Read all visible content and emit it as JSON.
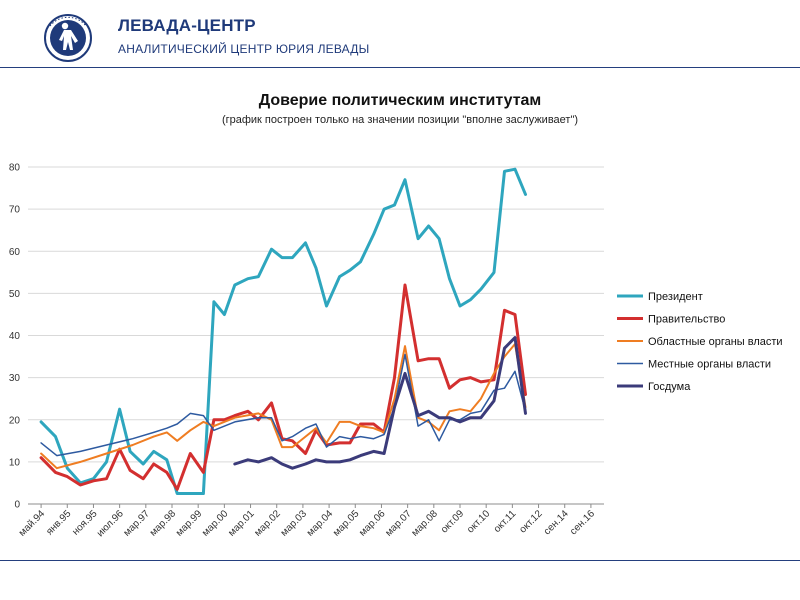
{
  "header": {
    "brand_name": "ЛЕВАДА-ЦЕНТР",
    "brand_sub": "АНАЛИТИЧЕСКИЙ ЦЕНТР ЮРИЯ ЛЕВАДЫ",
    "logo_icon": "levada-logo-icon"
  },
  "chart_data": {
    "type": "line",
    "title": "Доверие политическим институтам",
    "subtitle": "(график построен только на значении позиции \"вполне заслуживает\")",
    "xlabel": "",
    "ylabel": "",
    "ylim": [
      0,
      85
    ],
    "yticks": [
      0,
      10,
      20,
      30,
      40,
      50,
      60,
      70,
      80
    ],
    "grid": true,
    "legend": "right",
    "categories": [
      "май.94",
      "янв.95",
      "ноя.95",
      "июл.96",
      "мар.97",
      "мар.98",
      "мар.99",
      "мар.00",
      "мар.01",
      "мар.02",
      "мар.03",
      "мар.04",
      "мар.05",
      "мар.06",
      "мар.07",
      "мар.08",
      "окт.09",
      "окт.10",
      "окт.11",
      "окт.12",
      "сен.14",
      "сен.16"
    ],
    "series": [
      {
        "name": "Президент",
        "color": "#2ea6be",
        "width": 3,
        "values": [
          [
            0,
            19.5
          ],
          [
            0.55,
            16
          ],
          [
            1,
            8.5
          ],
          [
            1.5,
            5
          ],
          [
            2,
            6
          ],
          [
            2.5,
            10
          ],
          [
            3,
            22.5
          ],
          [
            3.4,
            12.5
          ],
          [
            3.9,
            9.5
          ],
          [
            4.3,
            12.5
          ],
          [
            4.8,
            10.5
          ],
          [
            5.2,
            2.5
          ],
          [
            5.7,
            2.5
          ],
          [
            6.2,
            2.5
          ],
          [
            6.6,
            48
          ],
          [
            7,
            45
          ],
          [
            7.4,
            52
          ],
          [
            7.9,
            53.5
          ],
          [
            8.3,
            54
          ],
          [
            8.8,
            60.5
          ],
          [
            9.2,
            58.5
          ],
          [
            9.6,
            58.5
          ],
          [
            10.1,
            62
          ],
          [
            10.5,
            56
          ],
          [
            10.9,
            47
          ],
          [
            11.4,
            54
          ],
          [
            11.8,
            55.5
          ],
          [
            12.2,
            57.5
          ],
          [
            12.7,
            64
          ],
          [
            13.1,
            70
          ],
          [
            13.5,
            71
          ],
          [
            13.9,
            77
          ],
          [
            14.4,
            63
          ],
          [
            14.8,
            66
          ],
          [
            15.2,
            63
          ],
          [
            15.6,
            53.5
          ],
          [
            16,
            47
          ],
          [
            16.4,
            48.5
          ],
          [
            16.8,
            51
          ],
          [
            17.3,
            55
          ],
          [
            17.7,
            79
          ],
          [
            18.1,
            79.5
          ],
          [
            18.5,
            73.5
          ]
        ]
      },
      {
        "name": "Правительство",
        "color": "#d32f2f",
        "width": 3,
        "values": [
          [
            0,
            11
          ],
          [
            0.55,
            7.5
          ],
          [
            1,
            6.5
          ],
          [
            1.5,
            4.5
          ],
          [
            2,
            5.5
          ],
          [
            2.5,
            6
          ],
          [
            3,
            13
          ],
          [
            3.4,
            8
          ],
          [
            3.9,
            6
          ],
          [
            4.3,
            9.5
          ],
          [
            4.8,
            7.5
          ],
          [
            5.2,
            3.5
          ],
          [
            5.7,
            12
          ],
          [
            6.2,
            7.5
          ],
          [
            6.6,
            20
          ],
          [
            7,
            20
          ],
          [
            7.4,
            21
          ],
          [
            7.9,
            22
          ],
          [
            8.3,
            20
          ],
          [
            8.8,
            24
          ],
          [
            9.2,
            15.5
          ],
          [
            9.6,
            15
          ],
          [
            10.1,
            12
          ],
          [
            10.5,
            17.5
          ],
          [
            10.9,
            14
          ],
          [
            11.4,
            14.5
          ],
          [
            11.8,
            14.5
          ],
          [
            12.2,
            19
          ],
          [
            12.7,
            19
          ],
          [
            13.1,
            17
          ],
          [
            13.5,
            30
          ],
          [
            13.9,
            52
          ],
          [
            14.4,
            34
          ],
          [
            14.8,
            34.5
          ],
          [
            15.2,
            34.5
          ],
          [
            15.6,
            27.5
          ],
          [
            16,
            29.5
          ],
          [
            16.4,
            30
          ],
          [
            16.8,
            29
          ],
          [
            17.3,
            29.5
          ],
          [
            17.7,
            46
          ],
          [
            18.1,
            45
          ],
          [
            18.5,
            26
          ]
        ]
      },
      {
        "name": "Областные органы власти",
        "color": "#ef7d22",
        "width": 2,
        "values": [
          [
            0,
            12
          ],
          [
            0.6,
            8.5
          ],
          [
            1.5,
            10
          ],
          [
            2.5,
            12
          ],
          [
            3.5,
            14
          ],
          [
            4.3,
            16
          ],
          [
            4.8,
            17
          ],
          [
            5.2,
            15
          ],
          [
            5.7,
            17.5
          ],
          [
            6.2,
            19.5
          ],
          [
            6.6,
            18.5
          ],
          [
            7.4,
            20.5
          ],
          [
            8.3,
            21.5
          ],
          [
            8.8,
            20
          ],
          [
            9.2,
            13.5
          ],
          [
            9.6,
            13.5
          ],
          [
            10.1,
            16
          ],
          [
            10.5,
            18
          ],
          [
            10.9,
            14.5
          ],
          [
            11.4,
            19.5
          ],
          [
            11.8,
            19.5
          ],
          [
            12.2,
            18.5
          ],
          [
            12.7,
            18
          ],
          [
            13.1,
            17
          ],
          [
            13.5,
            25
          ],
          [
            13.9,
            37.5
          ],
          [
            14.4,
            20.5
          ],
          [
            14.8,
            19.5
          ],
          [
            15.2,
            17.5
          ],
          [
            15.6,
            22
          ],
          [
            16,
            22.5
          ],
          [
            16.4,
            22
          ],
          [
            16.8,
            25
          ],
          [
            17.3,
            31
          ],
          [
            17.7,
            35
          ],
          [
            18.1,
            38
          ],
          [
            18.5,
            23
          ]
        ]
      },
      {
        "name": "Местные органы власти",
        "color": "#2e5aa0",
        "width": 1.5,
        "values": [
          [
            0,
            14.5
          ],
          [
            0.6,
            11.5
          ],
          [
            1.5,
            12.5
          ],
          [
            2.5,
            14
          ],
          [
            3.5,
            15.5
          ],
          [
            4.3,
            17
          ],
          [
            4.8,
            18
          ],
          [
            5.2,
            19
          ],
          [
            5.7,
            21.5
          ],
          [
            6.2,
            21
          ],
          [
            6.6,
            17.5
          ],
          [
            7.4,
            19.5
          ],
          [
            8.3,
            20.5
          ],
          [
            8.8,
            20.5
          ],
          [
            9.2,
            15
          ],
          [
            9.6,
            16
          ],
          [
            10.1,
            18
          ],
          [
            10.5,
            19
          ],
          [
            10.9,
            13.5
          ],
          [
            11.4,
            16
          ],
          [
            11.8,
            15.5
          ],
          [
            12.2,
            16
          ],
          [
            12.7,
            15.5
          ],
          [
            13.1,
            16.5
          ],
          [
            13.5,
            23
          ],
          [
            13.9,
            35.5
          ],
          [
            14.4,
            18.5
          ],
          [
            14.8,
            20
          ],
          [
            15.2,
            15
          ],
          [
            15.6,
            20
          ],
          [
            16,
            20
          ],
          [
            16.4,
            21.5
          ],
          [
            16.8,
            22
          ],
          [
            17.3,
            27
          ],
          [
            17.7,
            27.5
          ],
          [
            18.1,
            31.5
          ],
          [
            18.5,
            22
          ]
        ]
      },
      {
        "name": "Госдума",
        "color": "#3b3b7a",
        "width": 3,
        "values": [
          [
            7.4,
            9.5
          ],
          [
            7.9,
            10.5
          ],
          [
            8.3,
            10
          ],
          [
            8.8,
            11
          ],
          [
            9.2,
            9.5
          ],
          [
            9.6,
            8.5
          ],
          [
            10.1,
            9.5
          ],
          [
            10.5,
            10.5
          ],
          [
            10.9,
            10
          ],
          [
            11.4,
            10
          ],
          [
            11.8,
            10.5
          ],
          [
            12.2,
            11.5
          ],
          [
            12.7,
            12.5
          ],
          [
            13.1,
            12
          ],
          [
            13.5,
            23
          ],
          [
            13.9,
            31
          ],
          [
            14.4,
            21
          ],
          [
            14.8,
            22
          ],
          [
            15.2,
            20.5
          ],
          [
            15.6,
            20.5
          ],
          [
            16,
            19.5
          ],
          [
            16.4,
            20.5
          ],
          [
            16.8,
            20.5
          ],
          [
            17.3,
            24.5
          ],
          [
            17.7,
            37
          ],
          [
            18.1,
            39.5
          ],
          [
            18.5,
            21.5
          ]
        ]
      }
    ]
  }
}
